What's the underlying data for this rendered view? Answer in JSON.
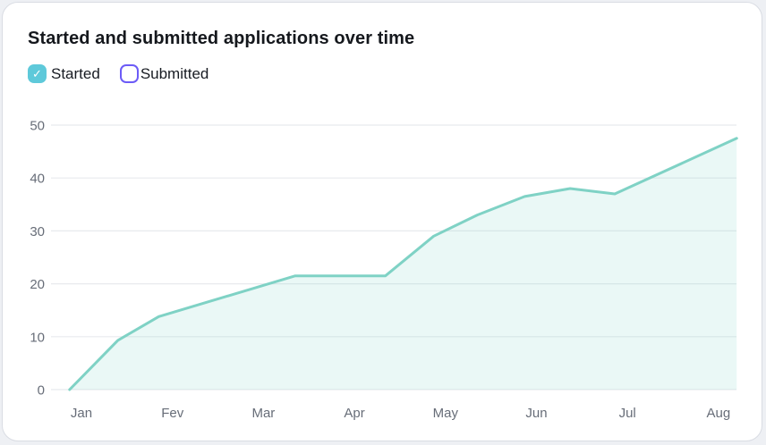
{
  "card": {
    "title": "Started and submitted applications over time"
  },
  "legend": {
    "items": [
      {
        "label": "Started",
        "checked": true,
        "checkbox_color": "#5ec9da",
        "checkmark": "✓"
      },
      {
        "label": "Submitted",
        "checked": false,
        "checkbox_color": "#6c5bf7",
        "checkmark": ""
      }
    ]
  },
  "chart_data": {
    "type": "area",
    "title": "Started and submitted applications over time",
    "xlabel": "",
    "ylabel": "",
    "x_tick_labels": [
      "Jan",
      "Fev",
      "Mar",
      "Apr",
      "May",
      "Jun",
      "Jul",
      "Aug"
    ],
    "y_ticks": [
      0,
      10,
      20,
      30,
      40,
      50
    ],
    "ylim": [
      0,
      50
    ],
    "grid": "horizontal",
    "legend_position": "top-left",
    "series": [
      {
        "name": "Started",
        "visible": true,
        "color": "#7fd2c5",
        "fill_opacity": 0.16,
        "points_note": "x is month position (1=Jan ... 8=Aug, fractions = mid-month), y = applications",
        "points": [
          [
            0.87,
            0
          ],
          [
            1.4,
            9.3
          ],
          [
            1.85,
            13.8
          ],
          [
            3.35,
            21.5
          ],
          [
            4.34,
            21.5
          ],
          [
            4.87,
            29
          ],
          [
            5.35,
            33
          ],
          [
            5.87,
            36.5
          ],
          [
            6.37,
            38
          ],
          [
            6.86,
            37
          ],
          [
            8.2,
            47.5
          ]
        ]
      },
      {
        "name": "Submitted",
        "visible": false,
        "color": "#6c5bf7",
        "fill_opacity": 0.16,
        "points": []
      }
    ]
  }
}
